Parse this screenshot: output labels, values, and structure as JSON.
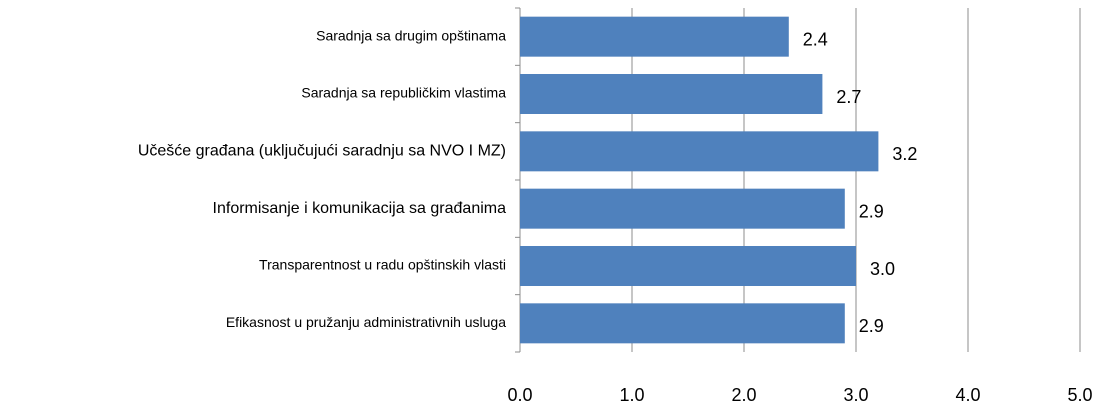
{
  "chart_data": {
    "type": "bar",
    "orientation": "horizontal",
    "categories": [
      "Saradnja sa drugim opštinama",
      "Saradnja sa republičkim vlastima",
      "Učešće građana (uključujući saradnju sa NVO I MZ)",
      "Informisanje i komunikacija sa građanima",
      "Transparentnost u radu opštinskih  vlasti",
      "Efikasnost u pružanju administrativnih usluga"
    ],
    "values": [
      2.4,
      2.7,
      3.2,
      2.9,
      3.0,
      2.9
    ],
    "value_labels": [
      "2.4",
      "2.7",
      "3.2",
      "2.9",
      "3.0",
      "2.9"
    ],
    "color": "#4f81bd",
    "xlim": [
      0,
      5
    ],
    "xticks": [
      {
        "value": 0,
        "label": "0.0"
      },
      {
        "value": 1,
        "label": "1.0"
      },
      {
        "value": 2,
        "label": "2.0"
      },
      {
        "value": 3,
        "label": "3.0"
      },
      {
        "value": 4,
        "label": "4.0"
      },
      {
        "value": 5,
        "label": "5.0"
      }
    ],
    "grid": true
  }
}
